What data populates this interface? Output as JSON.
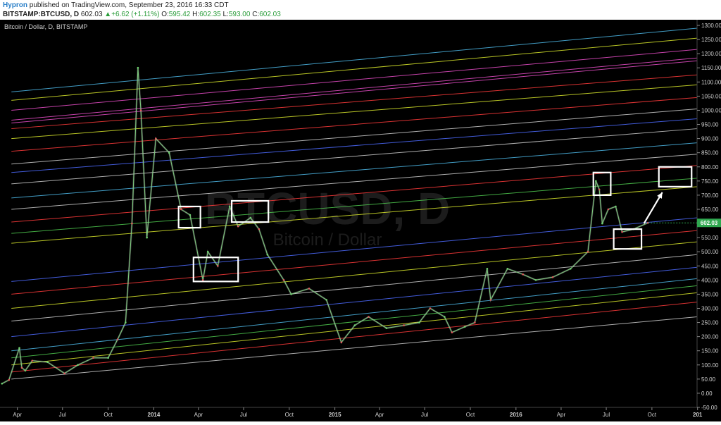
{
  "header": {
    "user": "Hypron",
    "published": "published on TradingView.com, September 23, 2016 16:33 CDT",
    "symbol": "BITSTAMP:BTCUSD, D",
    "price": "602.03",
    "change": "+6.62 (+1.11%)",
    "open_label": "O:",
    "open": "595.42",
    "high_label": "H:",
    "high": "602.35",
    "low_label": "L:",
    "low": "593.00",
    "close_label": "C:",
    "close": "602.03"
  },
  "watermark": {
    "symbol": "BTCUSD, D",
    "name": "Bitcoin / Dollar"
  },
  "chart_data": {
    "type": "line",
    "title": "Bitcoin / Dollar, D, BITSTAMP",
    "x": [
      "2013-03-01",
      "2013-03-15",
      "2013-04-05",
      "2013-04-10",
      "2013-04-17",
      "2013-05-01",
      "2013-06-01",
      "2013-07-05",
      "2013-08-01",
      "2013-09-01",
      "2013-10-01",
      "2013-10-20",
      "2013-11-05",
      "2013-11-18",
      "2013-11-30",
      "2013-12-06",
      "2013-12-18",
      "2014-01-05",
      "2014-02-01",
      "2014-02-25",
      "2014-03-15",
      "2014-04-10",
      "2014-04-20",
      "2014-05-10",
      "2014-06-03",
      "2014-06-20",
      "2014-07-15",
      "2014-08-01",
      "2014-08-18",
      "2014-09-20",
      "2014-10-05",
      "2014-11-10",
      "2014-12-15",
      "2015-01-14",
      "2015-02-10",
      "2015-03-10",
      "2015-04-15",
      "2015-05-20",
      "2015-06-20",
      "2015-07-12",
      "2015-08-10",
      "2015-08-25",
      "2015-09-20",
      "2015-10-10",
      "2015-11-04",
      "2015-11-11",
      "2015-12-15",
      "2016-01-15",
      "2016-02-10",
      "2016-03-15",
      "2016-04-20",
      "2016-05-25",
      "2016-06-10",
      "2016-06-17",
      "2016-06-23",
      "2016-07-05",
      "2016-07-20",
      "2016-08-02",
      "2016-08-25",
      "2016-09-23"
    ],
    "series": [
      {
        "values": [
          34,
          47,
          160,
          90,
          80,
          115,
          110,
          70,
          100,
          125,
          125,
          190,
          250,
          600,
          1150,
          1000,
          550,
          900,
          850,
          650,
          630,
          400,
          500,
          450,
          660,
          590,
          620,
          580,
          490,
          400,
          350,
          370,
          330,
          180,
          240,
          270,
          230,
          240,
          250,
          300,
          270,
          215,
          235,
          250,
          440,
          330,
          440,
          420,
          400,
          410,
          440,
          500,
          750,
          720,
          600,
          650,
          660,
          570,
          580,
          602.03
        ]
      }
    ],
    "ylim": [
      -50,
      1320
    ],
    "y_ticks": [
      -50,
      0,
      50,
      100,
      150,
      200,
      250,
      300,
      350,
      400,
      450,
      500,
      550,
      600,
      650,
      700,
      750,
      800,
      850,
      900,
      950,
      1000,
      1050,
      1100,
      1150,
      1200,
      1250,
      1300
    ],
    "y_tick_labels": [
      "-50.00",
      "0.00",
      "50.00",
      "100.00",
      "150.00",
      "200.00",
      "250.00",
      "300.00",
      "350.00",
      "400.00",
      "450.00",
      "500.00",
      "550.00",
      "600.00",
      "650.00",
      "700.00",
      "750.00",
      "800.00",
      "850.00",
      "900.00",
      "950.00",
      "1000.00",
      "1050.00",
      "1100.00",
      "1150.00",
      "1200.00",
      "1250.00",
      "1300.00"
    ],
    "x_range": [
      "2013-02-25",
      "2016-12-31"
    ],
    "x_tick_labels": [
      {
        "date": "2013-04-01",
        "label": "Apr",
        "bold": false
      },
      {
        "date": "2013-07-01",
        "label": "Jul",
        "bold": false
      },
      {
        "date": "2013-10-01",
        "label": "Oct",
        "bold": false
      },
      {
        "date": "2014-01-01",
        "label": "2014",
        "bold": true
      },
      {
        "date": "2014-04-01",
        "label": "Apr",
        "bold": false
      },
      {
        "date": "2014-07-01",
        "label": "Jul",
        "bold": false
      },
      {
        "date": "2014-10-01",
        "label": "Oct",
        "bold": false
      },
      {
        "date": "2015-01-01",
        "label": "2015",
        "bold": true
      },
      {
        "date": "2015-04-01",
        "label": "Apr",
        "bold": false
      },
      {
        "date": "2015-07-01",
        "label": "Jul",
        "bold": false
      },
      {
        "date": "2015-10-01",
        "label": "Oct",
        "bold": false
      },
      {
        "date": "2016-01-01",
        "label": "2016",
        "bold": true
      },
      {
        "date": "2016-04-01",
        "label": "Apr",
        "bold": false
      },
      {
        "date": "2016-07-01",
        "label": "Jul",
        "bold": false
      },
      {
        "date": "2016-10-01",
        "label": "Oct",
        "bold": false
      },
      {
        "date": "2017-01-01",
        "label": "201",
        "bold": true
      }
    ],
    "last_price_label": "602.03",
    "channel_lines": [
      {
        "y_start": 50,
        "y_end": 270,
        "color": "#cccccc"
      },
      {
        "y_start": 75,
        "y_end": 322,
        "color": "#ff3b3b"
      },
      {
        "y_start": 100,
        "y_end": 355,
        "color": "#d8e62b"
      },
      {
        "y_start": 125,
        "y_end": 380,
        "color": "#4fc94f"
      },
      {
        "y_start": 150,
        "y_end": 405,
        "color": "#4db8e8"
      },
      {
        "y_start": 200,
        "y_end": 445,
        "color": "#4d6bff"
      },
      {
        "y_start": 255,
        "y_end": 490,
        "color": "#cccccc"
      },
      {
        "y_start": 300,
        "y_end": 535,
        "color": "#d8e62b"
      },
      {
        "y_start": 350,
        "y_end": 575,
        "color": "#ff3b3b"
      },
      {
        "y_start": 395,
        "y_end": 620,
        "color": "#4d6bff"
      },
      {
        "y_start": 530,
        "y_end": 730,
        "color": "#d8e62b"
      },
      {
        "y_start": 565,
        "y_end": 760,
        "color": "#4fc94f"
      },
      {
        "y_start": 605,
        "y_end": 805,
        "color": "#ff3b3b"
      },
      {
        "y_start": 650,
        "y_end": 845,
        "color": "#cccccc"
      },
      {
        "y_start": 690,
        "y_end": 885,
        "color": "#4db8e8"
      },
      {
        "y_start": 740,
        "y_end": 935,
        "color": "#cccccc"
      },
      {
        "y_start": 780,
        "y_end": 970,
        "color": "#4d6bff"
      },
      {
        "y_start": 810,
        "y_end": 1005,
        "color": "#cccccc"
      },
      {
        "y_start": 855,
        "y_end": 1045,
        "color": "#ff3b3b"
      },
      {
        "y_start": 900,
        "y_end": 1090,
        "color": "#d8e62b"
      },
      {
        "y_start": 935,
        "y_end": 1125,
        "color": "#ff3b3b"
      },
      {
        "y_start": 955,
        "y_end": 1175,
        "color": "#e84dc8"
      },
      {
        "y_start": 965,
        "y_end": 1185,
        "color": "#e84dc8"
      },
      {
        "y_start": 1000,
        "y_end": 1215,
        "color": "#e84dc8"
      },
      {
        "y_start": 1035,
        "y_end": 1255,
        "color": "#d8e62b"
      },
      {
        "y_start": 1065,
        "y_end": 1290,
        "color": "#4db8e8"
      }
    ],
    "boxes": [
      {
        "x0": "2014-02-20",
        "x1": "2014-04-05",
        "y0": 585,
        "y1": 660
      },
      {
        "x0": "2014-03-22",
        "x1": "2014-06-20",
        "y0": 395,
        "y1": 480
      },
      {
        "x0": "2014-06-07",
        "x1": "2014-08-20",
        "y0": 605,
        "y1": 680
      },
      {
        "x0": "2016-06-05",
        "x1": "2016-07-10",
        "y0": 700,
        "y1": 780
      },
      {
        "x0": "2016-07-16",
        "x1": "2016-09-10",
        "y0": 510,
        "y1": 580
      },
      {
        "x0": "2016-10-15",
        "x1": "2016-12-20",
        "y0": 730,
        "y1": 800
      }
    ],
    "arrow": {
      "x0": "2016-09-15",
      "y0": 600,
      "x1": "2016-10-22",
      "y1": 710
    },
    "grid": false,
    "legend": "none"
  }
}
